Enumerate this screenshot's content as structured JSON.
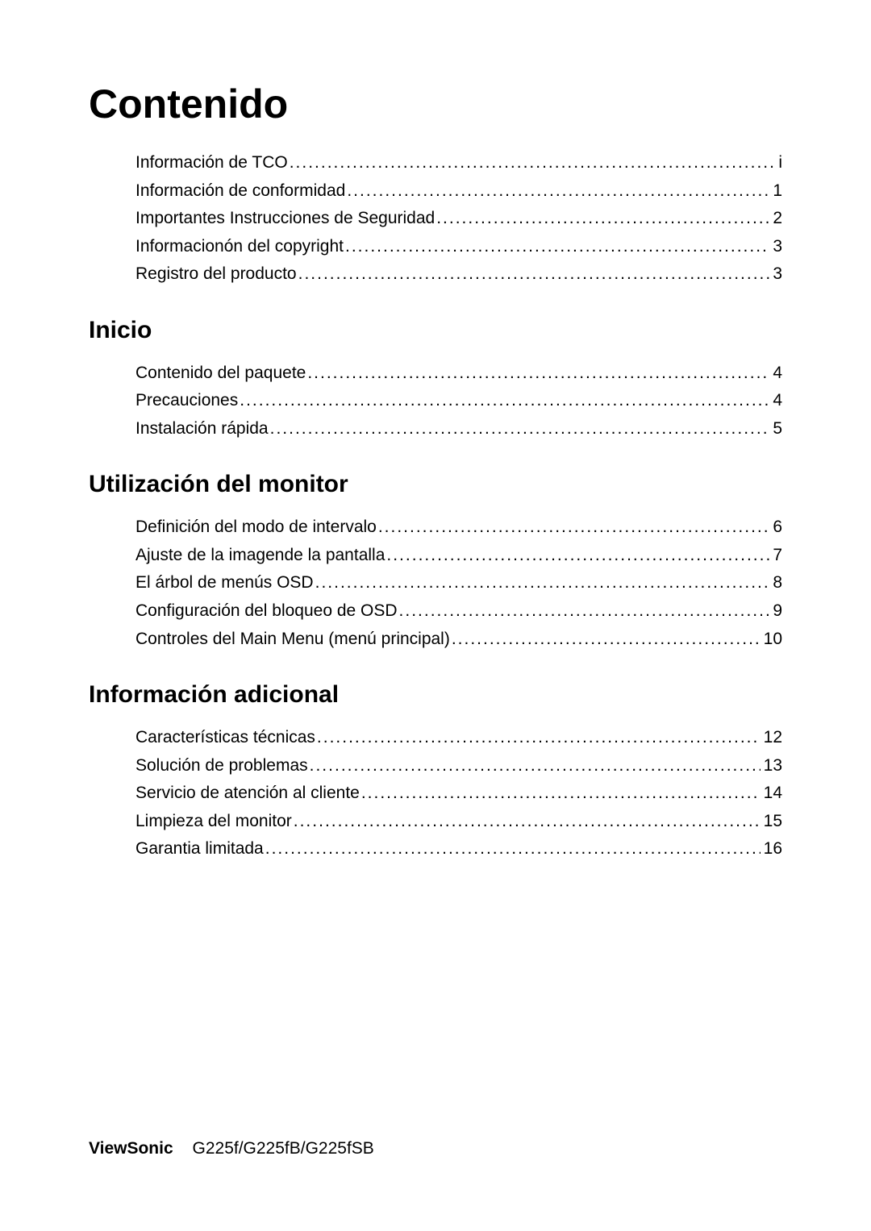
{
  "title": "Contenido",
  "title_fontsize": 50,
  "body_fontsize": 21,
  "heading_fontsize": 30,
  "text_color": "#000000",
  "background_color": "#ffffff",
  "sections": [
    {
      "heading": null,
      "entries": [
        {
          "label": "Información de TCO",
          "page": "i"
        },
        {
          "label": "Información de conformidad",
          "page": "1"
        },
        {
          "label": "Importantes Instrucciones de Seguridad",
          "page": "2"
        },
        {
          "label": "Informacionón del copyright",
          "page": "3"
        },
        {
          "label": "Registro del producto",
          "page": "3"
        }
      ]
    },
    {
      "heading": "Inicio",
      "entries": [
        {
          "label": "Contenido del paquete",
          "page": "4"
        },
        {
          "label": "Precauciones",
          "page": "4"
        },
        {
          "label": "Instalación rápida",
          "page": "5"
        }
      ]
    },
    {
      "heading": "Utilización del monitor",
      "entries": [
        {
          "label": "Definición del modo de intervalo",
          "page": "6"
        },
        {
          "label": "Ajuste de la imagende la pantalla",
          "page": "7"
        },
        {
          "label": "El árbol de menús OSD",
          "page": "8"
        },
        {
          "label": "Configuración del bloqueo de OSD",
          "page": "9"
        },
        {
          "label": "Controles del Main Menu (menú principal)",
          "page": "10"
        }
      ]
    },
    {
      "heading": "Información adicional",
      "entries": [
        {
          "label": "Características técnicas",
          "page": "12"
        },
        {
          "label": "Solución de problemas",
          "page": "13"
        },
        {
          "label": "Servicio de atención al cliente",
          "page": "14"
        },
        {
          "label": "Limpieza del monitor",
          "page": "15"
        },
        {
          "label": "Garantia limitada",
          "page": "16"
        }
      ]
    }
  ],
  "footer": {
    "brand": "ViewSonic",
    "model": "G225f/G225fB/G225fSB"
  }
}
